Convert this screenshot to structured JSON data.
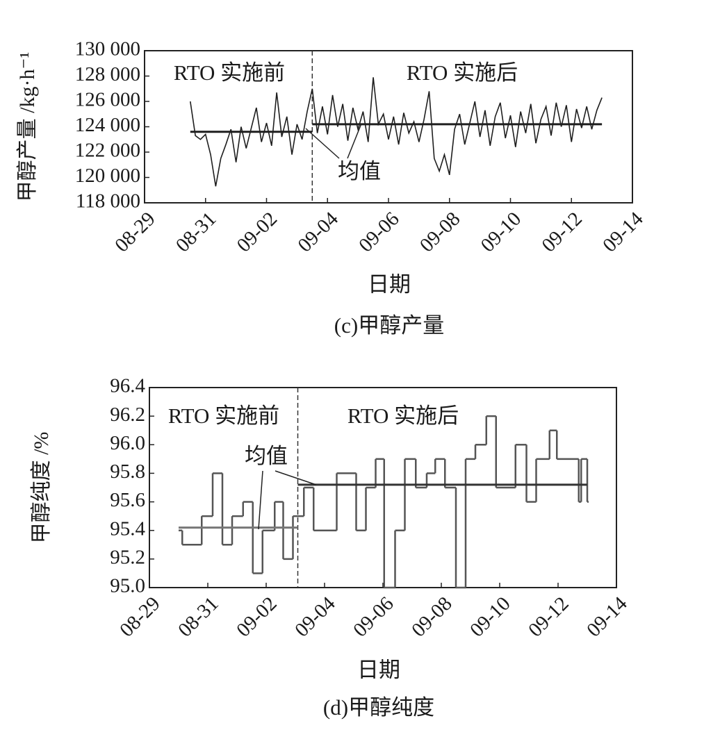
{
  "chart_data": [
    {
      "type": "line",
      "step": false,
      "y_label": "甲醇产量 /kg·h⁻¹",
      "x_label": "日期",
      "caption": "(c)甲醇产量",
      "annotations": [
        "RTO 实施前",
        "RTO 实施后",
        "均值"
      ],
      "divider_x": "09-03 12:00",
      "xlim": [
        "08-29",
        "09-14"
      ],
      "xticks": [
        "08-29",
        "08-31",
        "09-02",
        "09-04",
        "09-06",
        "09-08",
        "09-10",
        "09-12",
        "09-14"
      ],
      "ylim": [
        118000,
        130000
      ],
      "yticks": [
        {
          "value": 118000,
          "label": "118 000"
        },
        {
          "value": 120000,
          "label": "120 000"
        },
        {
          "value": 122000,
          "label": "122 000"
        },
        {
          "value": 124000,
          "label": "124 000"
        },
        {
          "value": 126000,
          "label": "126 000"
        },
        {
          "value": 128000,
          "label": "128 000"
        },
        {
          "value": 130000,
          "label": "130 000"
        }
      ],
      "series": [
        {
          "color": "#1e1e1e",
          "x": [
            "08-30 12:00",
            "08-30 16:00",
            "08-30 20:00",
            "08-31 00:00",
            "08-31 04:00",
            "08-31 08:00",
            "08-31 12:00",
            "08-31 16:00",
            "08-31 20:00",
            "09-01 00:00",
            "09-01 04:00",
            "09-01 08:00",
            "09-01 12:00",
            "09-01 16:00",
            "09-01 20:00",
            "09-02 00:00",
            "09-02 04:00",
            "09-02 08:00",
            "09-02 12:00",
            "09-02 16:00",
            "09-02 20:00",
            "09-03 00:00",
            "09-03 04:00",
            "09-03 08:00",
            "09-03 12:00",
            "09-03 16:00",
            "09-03 20:00",
            "09-04 00:00",
            "09-04 04:00",
            "09-04 08:00",
            "09-04 12:00",
            "09-04 16:00",
            "09-04 20:00",
            "09-05 00:00",
            "09-05 04:00",
            "09-05 08:00",
            "09-05 12:00",
            "09-05 16:00",
            "09-05 20:00",
            "09-06 00:00",
            "09-06 04:00",
            "09-06 08:00",
            "09-06 12:00",
            "09-06 16:00",
            "09-06 20:00",
            "09-07 00:00",
            "09-07 04:00",
            "09-07 08:00",
            "09-07 12:00",
            "09-07 16:00",
            "09-07 20:00",
            "09-08 00:00",
            "09-08 04:00",
            "09-08 08:00",
            "09-08 12:00",
            "09-08 16:00",
            "09-08 20:00",
            "09-09 00:00",
            "09-09 04:00",
            "09-09 08:00",
            "09-09 12:00",
            "09-09 16:00",
            "09-09 20:00",
            "09-10 00:00",
            "09-10 04:00",
            "09-10 08:00",
            "09-10 12:00",
            "09-10 16:00",
            "09-10 20:00",
            "09-11 00:00",
            "09-11 04:00",
            "09-11 08:00",
            "09-11 12:00",
            "09-11 16:00",
            "09-11 20:00",
            "09-12 00:00",
            "09-12 04:00",
            "09-12 08:00",
            "09-12 12:00",
            "09-12 16:00",
            "09-12 20:00",
            "09-13 00:00"
          ],
          "values": [
            126000,
            123300,
            123000,
            123400,
            121800,
            119300,
            121500,
            122600,
            123800,
            121200,
            124000,
            122300,
            123900,
            125500,
            122800,
            124300,
            122500,
            126700,
            123200,
            124800,
            121800,
            124200,
            123000,
            125200,
            127000,
            123500,
            125600,
            123400,
            126500,
            124000,
            125800,
            122900,
            125500,
            123800,
            125200,
            122800,
            127900,
            124200,
            125000,
            123000,
            124800,
            122600,
            125100,
            123500,
            124400,
            122800,
            124600,
            126800,
            121500,
            120500,
            121800,
            120200,
            123800,
            125000,
            122600,
            124300,
            126000,
            123200,
            125300,
            122500,
            124800,
            125900,
            123100,
            124900,
            122400,
            125200,
            123500,
            125800,
            122700,
            124600,
            125600,
            123300,
            125900,
            124000,
            125700,
            122800,
            125400,
            123900,
            125600,
            123800,
            125300,
            126300
          ]
        }
      ],
      "mean_lines": [
        {
          "color": "#1e1e1e",
          "x": [
            "08-30 12:00",
            "09-03 12:00"
          ],
          "values": [
            123600,
            123600
          ]
        },
        {
          "color": "#1e1e1e",
          "x": [
            "09-03 12:00",
            "09-13 00:00"
          ],
          "values": [
            124200,
            124200
          ]
        }
      ]
    },
    {
      "type": "line",
      "step": true,
      "y_label": "甲醇纯度 /%",
      "x_label": "日期",
      "caption": "(d)甲醇纯度",
      "annotations": [
        "RTO 实施前",
        "RTO 实施后",
        "均值"
      ],
      "divider_x": "09-03 02:00",
      "xlim": [
        "08-29",
        "09-14"
      ],
      "xticks": [
        "08-29",
        "08-31",
        "09-02",
        "09-04",
        "09-06",
        "09-08",
        "09-10",
        "09-12",
        "09-14"
      ],
      "ylim": [
        95.0,
        96.4
      ],
      "yticks": [
        {
          "value": 95.0,
          "label": "95.0"
        },
        95.2,
        95.4,
        95.6,
        95.8,
        {
          "value": 96.0,
          "label": "96.0"
        },
        96.2,
        96.4
      ],
      "series": [
        {
          "color": "#555555",
          "x": [
            "08-30 00:00",
            "08-30 03:00",
            "08-30 19:00",
            "08-31 04:00",
            "08-31 12:00",
            "08-31 20:00",
            "09-01 05:00",
            "09-01 13:00",
            "09-01 21:00",
            "09-02 07:00",
            "09-02 14:00",
            "09-02 22:00",
            "09-03 07:00",
            "09-03 15:00",
            "09-04 10:00",
            "09-05 02:00",
            "09-05 10:00",
            "09-05 18:00",
            "09-06 01:00",
            "09-06 10:00",
            "09-06 18:00",
            "09-07 03:00",
            "09-07 12:00",
            "09-07 19:00",
            "09-08 03:00",
            "09-08 12:00",
            "09-08 20:00",
            "09-09 04:00",
            "09-09 13:00",
            "09-09 21:00",
            "09-10 13:00",
            "09-10 22:00",
            "09-11 06:00",
            "09-11 17:00",
            "09-11 23:00",
            "09-12 17:00",
            "09-12 19:00",
            "09-13 00:00"
          ],
          "values": [
            95.4,
            95.3,
            95.5,
            95.8,
            95.3,
            95.5,
            95.6,
            95.1,
            95.4,
            95.6,
            95.2,
            95.5,
            95.7,
            95.4,
            95.8,
            95.4,
            95.7,
            95.9,
            95.0,
            95.4,
            95.9,
            95.7,
            95.8,
            95.9,
            95.7,
            95.0,
            95.9,
            96.0,
            96.2,
            95.7,
            96.0,
            95.6,
            95.9,
            96.1,
            95.9,
            95.6,
            95.9,
            95.6
          ]
        }
      ],
      "mean_lines": [
        {
          "color": "#777777",
          "x": [
            "08-30 00:00",
            "09-03 02:00"
          ],
          "values": [
            95.42,
            95.42
          ]
        },
        {
          "color": "#333333",
          "x": [
            "09-03 02:00",
            "09-13 00:00"
          ],
          "values": [
            95.72,
            95.72
          ]
        }
      ]
    }
  ]
}
